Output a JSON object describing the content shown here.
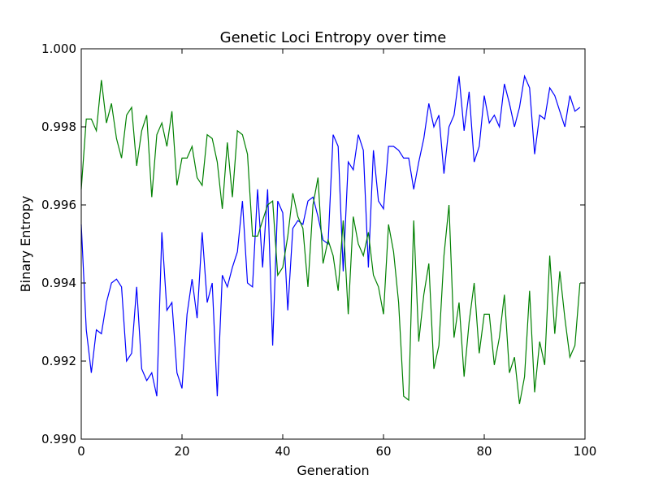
{
  "chart_data": {
    "type": "line",
    "title": "Genetic Loci Entropy over time",
    "xlabel": "Generation",
    "ylabel": "Binary Entropy",
    "xlim": [
      0,
      100
    ],
    "ylim": [
      0.99,
      1.0
    ],
    "xticks": [
      0,
      20,
      40,
      60,
      80,
      100
    ],
    "xtick_labels": [
      "0",
      "20",
      "40",
      "60",
      "80",
      "100"
    ],
    "yticks": [
      0.99,
      0.992,
      0.994,
      0.996,
      0.998,
      1.0
    ],
    "ytick_labels": [
      "0.990",
      "0.992",
      "0.994",
      "0.996",
      "0.998",
      "1.000"
    ],
    "grid": false,
    "legend": "none",
    "x": [
      0,
      1,
      2,
      3,
      4,
      5,
      6,
      7,
      8,
      9,
      10,
      11,
      12,
      13,
      14,
      15,
      16,
      17,
      18,
      19,
      20,
      21,
      22,
      23,
      24,
      25,
      26,
      27,
      28,
      29,
      30,
      31,
      32,
      33,
      34,
      35,
      36,
      37,
      38,
      39,
      40,
      41,
      42,
      43,
      44,
      45,
      46,
      47,
      48,
      49,
      50,
      51,
      52,
      53,
      54,
      55,
      56,
      57,
      58,
      59,
      60,
      61,
      62,
      63,
      64,
      65,
      66,
      67,
      68,
      69,
      70,
      71,
      72,
      73,
      74,
      75,
      76,
      77,
      78,
      79,
      80,
      81,
      82,
      83,
      84,
      85,
      86,
      87,
      88,
      89,
      90,
      91,
      92,
      93,
      94,
      95,
      96,
      97,
      98,
      99
    ],
    "series": [
      {
        "color": "#0000ff",
        "values": [
          0.9955,
          0.9928,
          0.9917,
          0.9928,
          0.9927,
          0.9935,
          0.994,
          0.9941,
          0.9939,
          0.992,
          0.9922,
          0.9939,
          0.9918,
          0.9915,
          0.9917,
          0.9911,
          0.9953,
          0.9933,
          0.9935,
          0.9917,
          0.9913,
          0.9932,
          0.9941,
          0.9931,
          0.9953,
          0.9935,
          0.994,
          0.9911,
          0.9942,
          0.9939,
          0.9944,
          0.9948,
          0.9961,
          0.994,
          0.9939,
          0.9964,
          0.9944,
          0.9964,
          0.9924,
          0.9961,
          0.9958,
          0.9933,
          0.9954,
          0.9956,
          0.9955,
          0.9961,
          0.9962,
          0.9957,
          0.9951,
          0.995,
          0.9978,
          0.9975,
          0.9943,
          0.9971,
          0.9969,
          0.9978,
          0.9974,
          0.9944,
          0.9974,
          0.9961,
          0.9959,
          0.9975,
          0.9975,
          0.9974,
          0.9972,
          0.9972,
          0.9964,
          0.9971,
          0.9977,
          0.9986,
          0.998,
          0.9983,
          0.9968,
          0.998,
          0.9983,
          0.9993,
          0.9979,
          0.9989,
          0.9971,
          0.9975,
          0.9988,
          0.9981,
          0.9983,
          0.998,
          0.9991,
          0.9986,
          0.998,
          0.9985,
          0.9993,
          0.999,
          0.9973,
          0.9983,
          0.9982,
          0.999,
          0.9988,
          0.9984,
          0.998,
          0.9988,
          0.9984,
          0.9985
        ]
      },
      {
        "color": "#008000",
        "values": [
          0.9964,
          0.9982,
          0.9982,
          0.9979,
          0.9992,
          0.9981,
          0.9986,
          0.9977,
          0.9972,
          0.9983,
          0.9985,
          0.997,
          0.9979,
          0.9983,
          0.9962,
          0.9978,
          0.9981,
          0.9975,
          0.9984,
          0.9965,
          0.9972,
          0.9972,
          0.9975,
          0.9967,
          0.9965,
          0.9978,
          0.9977,
          0.9971,
          0.9959,
          0.9976,
          0.9962,
          0.9979,
          0.9978,
          0.9973,
          0.9952,
          0.9952,
          0.9956,
          0.996,
          0.9961,
          0.9942,
          0.9944,
          0.9952,
          0.9963,
          0.9957,
          0.9954,
          0.9939,
          0.996,
          0.9967,
          0.9945,
          0.9951,
          0.9947,
          0.9938,
          0.9956,
          0.9932,
          0.9957,
          0.995,
          0.9947,
          0.9953,
          0.9942,
          0.9939,
          0.9932,
          0.9955,
          0.9948,
          0.9935,
          0.9911,
          0.991,
          0.9956,
          0.9925,
          0.9937,
          0.9945,
          0.9918,
          0.9924,
          0.9947,
          0.996,
          0.9926,
          0.9935,
          0.9916,
          0.993,
          0.994,
          0.9922,
          0.9932,
          0.9932,
          0.9919,
          0.9926,
          0.9937,
          0.9917,
          0.9921,
          0.9909,
          0.9916,
          0.9938,
          0.9912,
          0.9925,
          0.9919,
          0.9947,
          0.9927,
          0.9943,
          0.9931,
          0.9921,
          0.9924,
          0.994
        ]
      }
    ]
  }
}
